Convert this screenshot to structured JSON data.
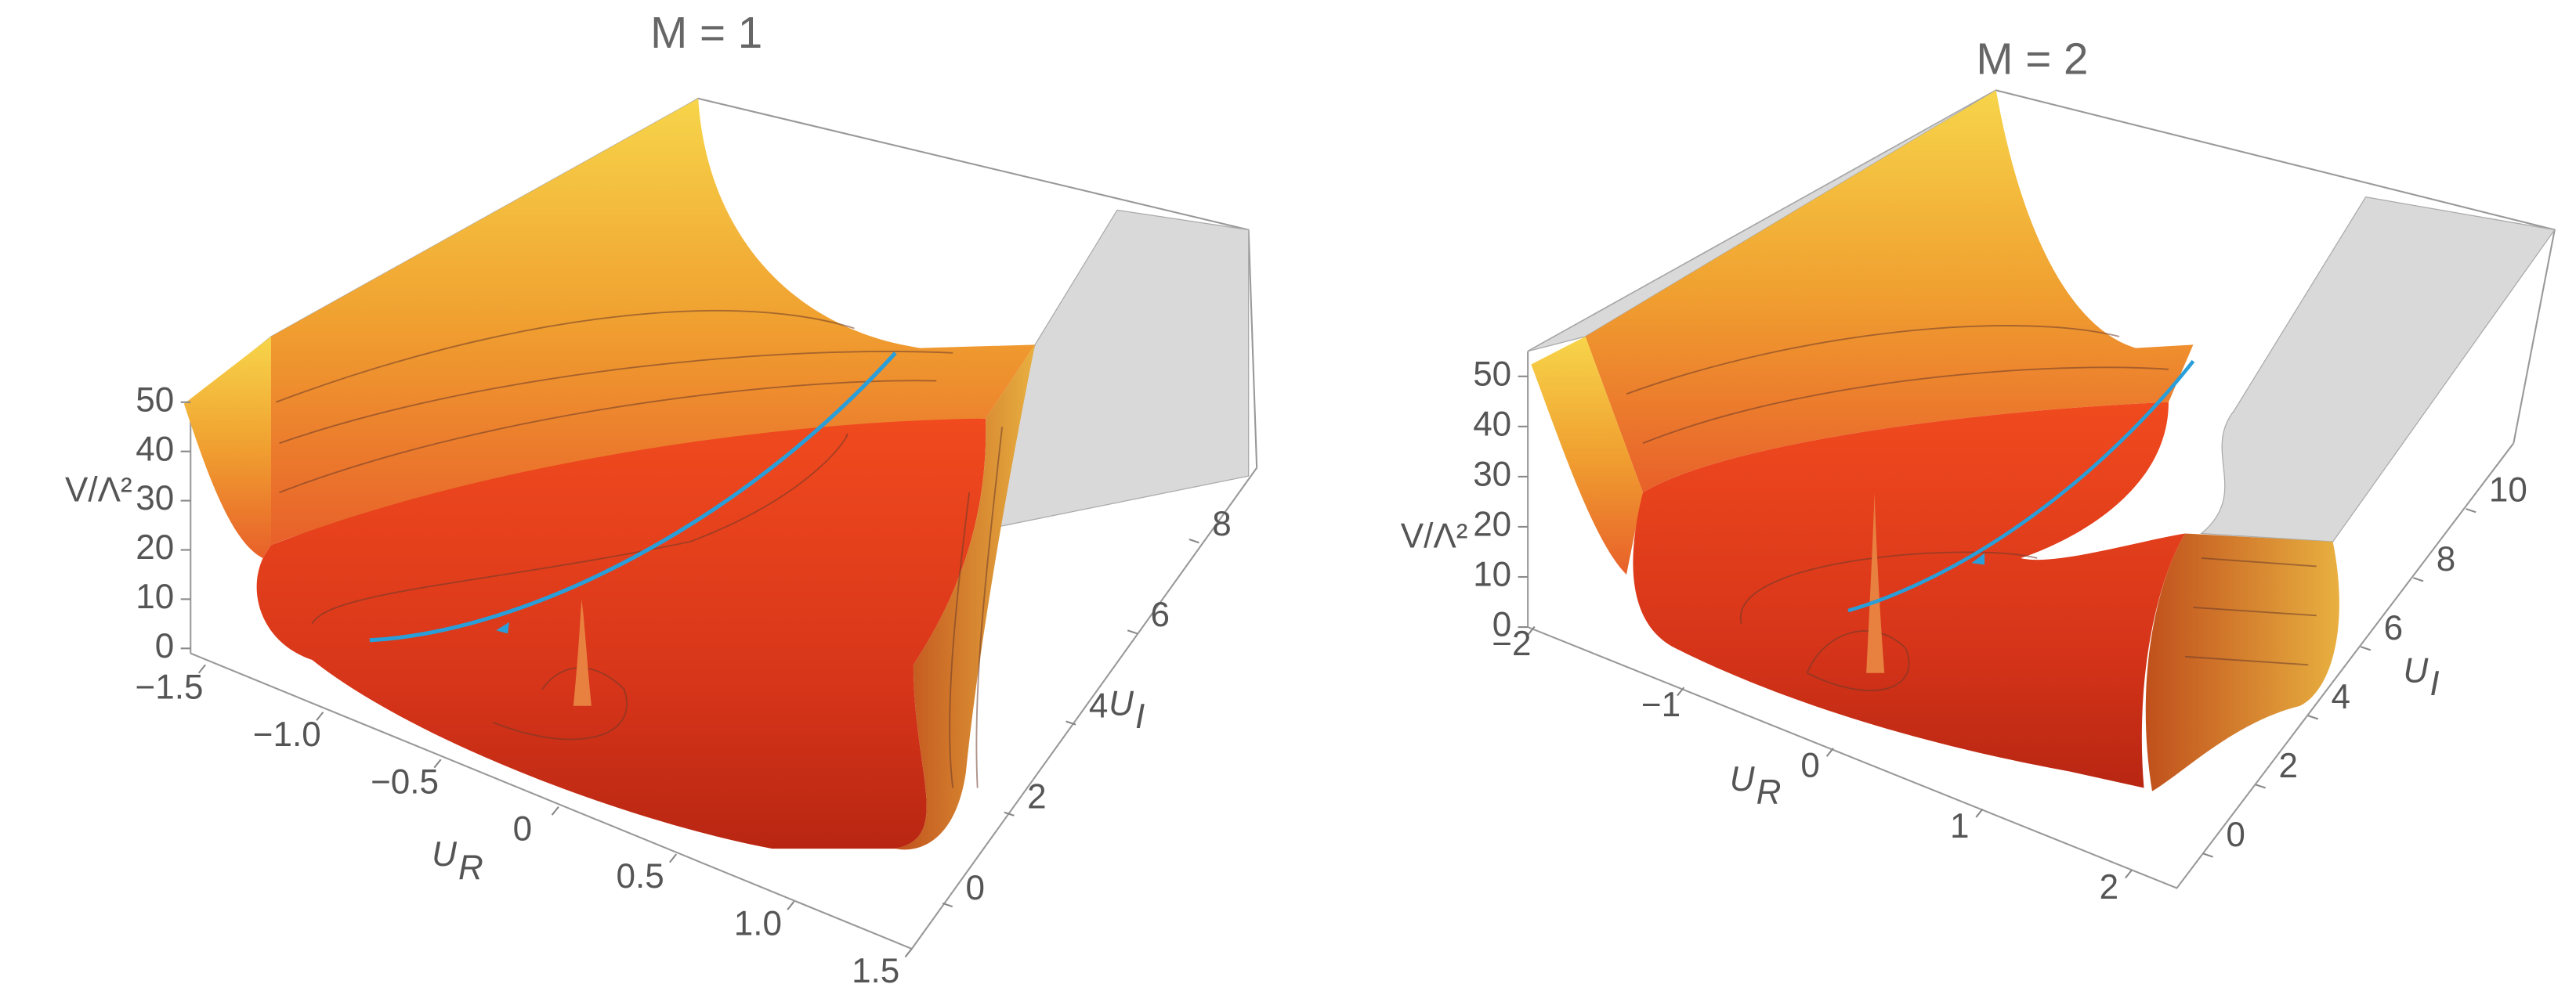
{
  "chart_data": [
    {
      "type": "surface3d",
      "title": "M = 1",
      "zlabel": "V/Λ²",
      "xlabel": {
        "text": "U",
        "sub": "R"
      },
      "ylabel": {
        "text": "U",
        "sub": "I"
      },
      "xlim": [
        -1.5,
        1.5
      ],
      "xticks": [
        {
          "value": -1.5,
          "label": "−1.5"
        },
        {
          "value": -1,
          "label": "−1.0"
        },
        {
          "value": -0.5,
          "label": "−0.5"
        },
        0,
        0.5,
        {
          "value": 1,
          "label": "1.0"
        },
        1.5
      ],
      "ylim": [
        -1,
        9.5
      ],
      "yticks": [
        0,
        2,
        4,
        6,
        8
      ],
      "zlim": [
        0,
        50
      ],
      "zticks": [
        0,
        10,
        20,
        30,
        40,
        50
      ]
    },
    {
      "type": "surface3d",
      "title": "M = 2",
      "zlabel": "V/Λ²",
      "xlabel": {
        "text": "U",
        "sub": "R"
      },
      "ylabel": {
        "text": "U",
        "sub": "I"
      },
      "xlim": [
        -2.1,
        2.3
      ],
      "xticks": [
        {
          "value": -2,
          "label": "−2"
        },
        {
          "value": -1,
          "label": "−1"
        },
        0,
        1,
        2
      ],
      "ylim": [
        -1,
        11
      ],
      "yticks": [
        0,
        2,
        4,
        6,
        8,
        10
      ],
      "zlim": [
        0,
        55
      ],
      "zticks": [
        0,
        10,
        20,
        30,
        40,
        50
      ]
    }
  ]
}
